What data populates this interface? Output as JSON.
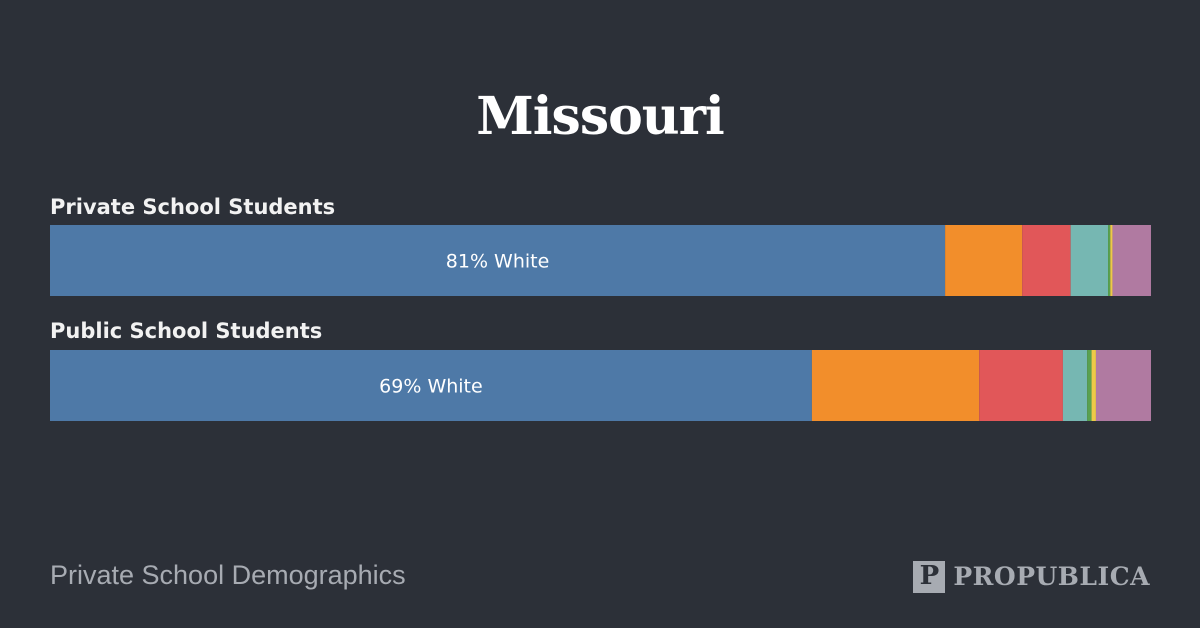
{
  "title": "Missouri",
  "footer": {
    "source_text": "Private School Demographics",
    "logo_text": "PROPUBLICA",
    "logo_mark": "P"
  },
  "chart_data": {
    "type": "bar",
    "orientation": "horizontal",
    "stacked": true,
    "xlim": [
      0,
      100
    ],
    "colors": [
      "#4e79a7",
      "#f28e2b",
      "#e15759",
      "#76b7b2",
      "#59a14f",
      "#edc948",
      "#b07aa1"
    ],
    "rows": [
      {
        "label": "Private School Students",
        "annotation": "81% White",
        "values": [
          81.3,
          7.0,
          4.4,
          3.4,
          0.2,
          0.2,
          3.5
        ]
      },
      {
        "label": "Public School Students",
        "annotation": "69% White",
        "values": [
          69.2,
          15.2,
          7.6,
          2.2,
          0.4,
          0.4,
          5.0
        ]
      }
    ]
  }
}
